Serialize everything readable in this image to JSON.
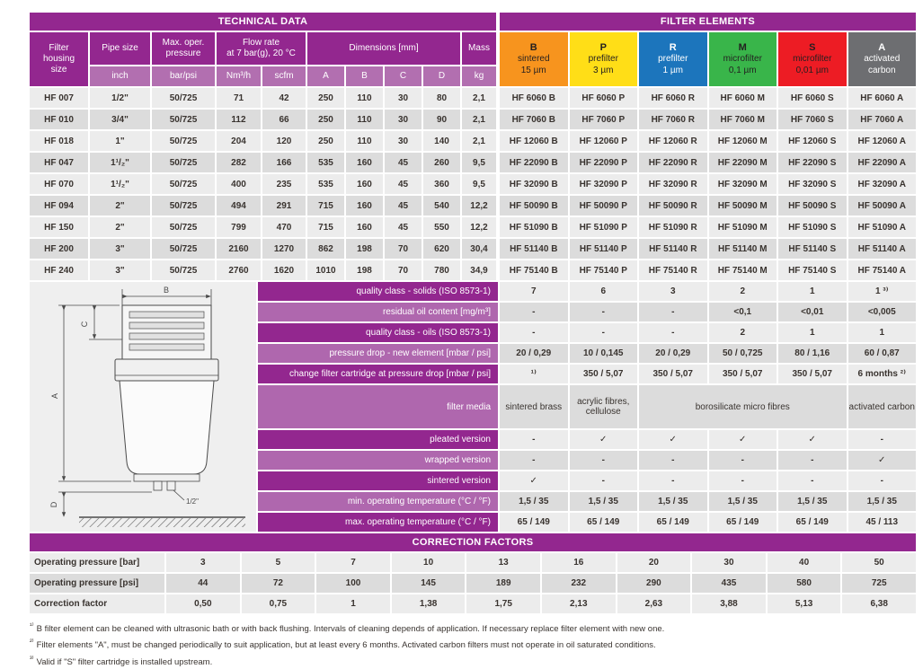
{
  "technical": {
    "title": "TECHNICAL DATA",
    "headers": {
      "filter_housing": "Filter\nhousing\nsize",
      "pipe_size": "Pipe size",
      "max_pressure": "Max. oper.\npressure",
      "flow_rate": "Flow rate\nat 7 bar(g), 20 °C",
      "dimensions": "Dimensions [mm]",
      "mass": "Mass"
    },
    "subheaders": [
      "inch",
      "bar/psi",
      "Nm³/h",
      "scfm",
      "A",
      "B",
      "C",
      "D",
      "kg"
    ],
    "rows": [
      [
        "HF 007",
        "1/2\"",
        "50/725",
        "71",
        "42",
        "250",
        "110",
        "30",
        "80",
        "2,1"
      ],
      [
        "HF 010",
        "3/4\"",
        "50/725",
        "112",
        "66",
        "250",
        "110",
        "30",
        "90",
        "2,1"
      ],
      [
        "HF 018",
        "1\"",
        "50/725",
        "204",
        "120",
        "250",
        "110",
        "30",
        "140",
        "2,1"
      ],
      [
        "HF 047",
        "1¹/₂\"",
        "50/725",
        "282",
        "166",
        "535",
        "160",
        "45",
        "260",
        "9,5"
      ],
      [
        "HF 070",
        "1¹/₂\"",
        "50/725",
        "400",
        "235",
        "535",
        "160",
        "45",
        "360",
        "9,5"
      ],
      [
        "HF 094",
        "2\"",
        "50/725",
        "494",
        "291",
        "715",
        "160",
        "45",
        "540",
        "12,2"
      ],
      [
        "HF 150",
        "2\"",
        "50/725",
        "799",
        "470",
        "715",
        "160",
        "45",
        "550",
        "12,2"
      ],
      [
        "HF 200",
        "3\"",
        "50/725",
        "2160",
        "1270",
        "862",
        "198",
        "70",
        "620",
        "30,4"
      ],
      [
        "HF 240",
        "3\"",
        "50/725",
        "2760",
        "1620",
        "1010",
        "198",
        "70",
        "780",
        "34,9"
      ]
    ]
  },
  "elements": {
    "title": "FILTER ELEMENTS",
    "columns": [
      {
        "code": "B",
        "line1": "sintered",
        "line2": "15 µm",
        "bg": "#f7941e",
        "fg": "#231f20"
      },
      {
        "code": "P",
        "line1": "prefilter",
        "line2": "3 µm",
        "bg": "#ffde17",
        "fg": "#231f20"
      },
      {
        "code": "R",
        "line1": "prefilter",
        "line2": "1 µm",
        "bg": "#1c75bc",
        "fg": "#ffffff"
      },
      {
        "code": "M",
        "line1": "microfilter",
        "line2": "0,1 µm",
        "bg": "#39b54a",
        "fg": "#231f20"
      },
      {
        "code": "S",
        "line1": "microfilter",
        "line2": "0,01 µm",
        "bg": "#ed1c24",
        "fg": "#231f20"
      },
      {
        "code": "A",
        "line1": "activated",
        "line2": "carbon",
        "bg": "#6d6e71",
        "fg": "#ffffff"
      }
    ],
    "rows": [
      [
        "HF 6060 B",
        "HF 6060 P",
        "HF 6060 R",
        "HF 6060 M",
        "HF 6060 S",
        "HF 6060 A"
      ],
      [
        "HF 7060 B",
        "HF 7060 P",
        "HF 7060 R",
        "HF 7060 M",
        "HF 7060 S",
        "HF 7060 A"
      ],
      [
        "HF 12060 B",
        "HF 12060 P",
        "HF 12060 R",
        "HF 12060 M",
        "HF 12060 S",
        "HF 12060 A"
      ],
      [
        "HF 22090 B",
        "HF 22090 P",
        "HF 22090 R",
        "HF 22090 M",
        "HF 22090 S",
        "HF 22090 A"
      ],
      [
        "HF 32090 B",
        "HF 32090 P",
        "HF 32090 R",
        "HF 32090 M",
        "HF 32090 S",
        "HF 32090 A"
      ],
      [
        "HF 50090 B",
        "HF 50090 P",
        "HF 50090 R",
        "HF 50090 M",
        "HF 50090 S",
        "HF 50090 A"
      ],
      [
        "HF 51090 B",
        "HF 51090 P",
        "HF 51090 R",
        "HF 51090 M",
        "HF 51090 S",
        "HF 51090 A"
      ],
      [
        "HF 51140 B",
        "HF 51140 P",
        "HF 51140 R",
        "HF 51140 M",
        "HF 51140 S",
        "HF 51140 A"
      ],
      [
        "HF 75140 B",
        "HF 75140 P",
        "HF 75140 R",
        "HF 75140 M",
        "HF 75140 S",
        "HF 75140 A"
      ]
    ]
  },
  "specs": {
    "rows": [
      {
        "label": "quality class - solids (ISO 8573-1)",
        "cells": [
          {
            "t": "7"
          },
          {
            "t": "6"
          },
          {
            "t": "3"
          },
          {
            "t": "2"
          },
          {
            "t": "1"
          },
          {
            "t": "1 ³⁾"
          }
        ]
      },
      {
        "label": "residual oil content [mg/m³]",
        "cells": [
          {
            "t": "-"
          },
          {
            "t": "-"
          },
          {
            "t": "-"
          },
          {
            "t": "<0,1"
          },
          {
            "t": "<0,01"
          },
          {
            "t": "<0,005"
          }
        ]
      },
      {
        "label": "quality class - oils (ISO 8573-1)",
        "cells": [
          {
            "t": "-"
          },
          {
            "t": "-"
          },
          {
            "t": "-"
          },
          {
            "t": "2"
          },
          {
            "t": "1"
          },
          {
            "t": "1"
          }
        ]
      },
      {
        "label": "pressure drop - new element [mbar / psi]",
        "cells": [
          {
            "t": "20 / 0,29"
          },
          {
            "t": "10 / 0,145"
          },
          {
            "t": "20 / 0,29"
          },
          {
            "t": "50 / 0,725"
          },
          {
            "t": "80 / 1,16"
          },
          {
            "t": "60 / 0,87"
          }
        ]
      },
      {
        "label": "change filter cartridge at pressure drop [mbar / psi]",
        "cells": [
          {
            "t": "¹⁾"
          },
          {
            "t": "350 / 5,07"
          },
          {
            "t": "350 / 5,07"
          },
          {
            "t": "350 / 5,07"
          },
          {
            "t": "350 / 5,07"
          },
          {
            "t": "6 months ²⁾"
          }
        ]
      },
      {
        "label": "filter media",
        "tall": true,
        "cells": [
          {
            "t": "sintered brass"
          },
          {
            "t": "acrylic fibres, cellulose"
          },
          {
            "t": "borosilicate micro fibres",
            "span": 3
          },
          {
            "t": "activated carbon"
          }
        ]
      },
      {
        "label": "pleated version",
        "cells": [
          {
            "t": "-"
          },
          {
            "t": "✓"
          },
          {
            "t": "✓"
          },
          {
            "t": "✓"
          },
          {
            "t": "✓"
          },
          {
            "t": "-"
          }
        ]
      },
      {
        "label": "wrapped version",
        "cells": [
          {
            "t": "-"
          },
          {
            "t": "-"
          },
          {
            "t": "-"
          },
          {
            "t": "-"
          },
          {
            "t": "-"
          },
          {
            "t": "✓"
          }
        ]
      },
      {
        "label": "sintered version",
        "cells": [
          {
            "t": "✓"
          },
          {
            "t": "-"
          },
          {
            "t": "-"
          },
          {
            "t": "-"
          },
          {
            "t": "-"
          },
          {
            "t": "-"
          }
        ]
      },
      {
        "label": "min. operating temperature  (°C / °F)",
        "cells": [
          {
            "t": "1,5 / 35"
          },
          {
            "t": "1,5 / 35"
          },
          {
            "t": "1,5 / 35"
          },
          {
            "t": "1,5 / 35"
          },
          {
            "t": "1,5 / 35"
          },
          {
            "t": "1,5 / 35"
          }
        ]
      },
      {
        "label": "max. operating temperature  (°C / °F)",
        "cells": [
          {
            "t": "65 / 149"
          },
          {
            "t": "65 / 149"
          },
          {
            "t": "65 / 149"
          },
          {
            "t": "65 / 149"
          },
          {
            "t": "65 / 149"
          },
          {
            "t": "45 / 113"
          }
        ]
      }
    ]
  },
  "diagram": {
    "dim_a": "A",
    "dim_b": "B",
    "dim_c": "C",
    "dim_d": "D",
    "port": "1/2\""
  },
  "correction": {
    "title": "CORRECTION FACTORS",
    "rows": [
      {
        "label": "Operating pressure [bar]",
        "values": [
          "3",
          "5",
          "7",
          "10",
          "13",
          "16",
          "20",
          "30",
          "40",
          "50"
        ]
      },
      {
        "label": "Operating pressure [psi]",
        "values": [
          "44",
          "72",
          "100",
          "145",
          "189",
          "232",
          "290",
          "435",
          "580",
          "725"
        ]
      },
      {
        "label": "Correction factor",
        "values": [
          "0,50",
          "0,75",
          "1",
          "1,38",
          "1,75",
          "2,13",
          "2,63",
          "3,88",
          "5,13",
          "6,38"
        ]
      }
    ]
  },
  "footnotes": [
    {
      "marker": "¹⁾",
      "text": "B filter element can be cleaned with ultrasonic bath or with back flushing. Intervals of cleaning depends of application. If necessary replace filter element with new one."
    },
    {
      "marker": "²⁾",
      "text": "Filter elements \"A\", must be changed periodically to suit application, but at least every 6 months. Activated carbon filters must not operate in oil saturated conditions."
    },
    {
      "marker": "³⁾",
      "text": "Valid if \"S\" filter cartridge is installed upstream."
    }
  ],
  "colors": {
    "purple_dark": "#93278f",
    "purple_medium": "#af67ae",
    "cell_light": "#ececec",
    "cell_dark": "#dcdcdc",
    "element_b_orange": "#f7941e",
    "element_p_yellow": "#ffde17",
    "element_r_blue": "#1c75bc",
    "element_m_green": "#39b54a",
    "element_s_red": "#ed1c24",
    "element_a_gray": "#6d6e71"
  }
}
